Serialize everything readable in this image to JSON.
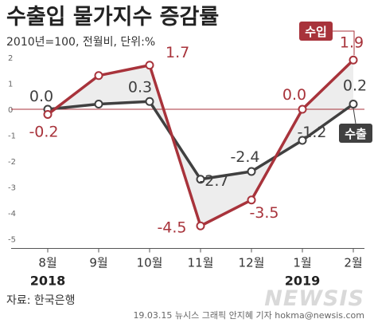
{
  "chart_data": {
    "type": "line",
    "title": "수출입 물가지수 증감률",
    "subtitle": "2010년=100, 전월비, 단위:%",
    "categories": [
      "8월",
      "9월",
      "10월",
      "11월",
      "12월",
      "1월",
      "2월"
    ],
    "year_labels": [
      "2018",
      "2019"
    ],
    "ylim": [
      -5,
      2
    ],
    "yticks": [
      "2",
      "1",
      "0",
      "-1",
      "-2",
      "-3",
      "-4",
      "-5"
    ],
    "grid": false,
    "series": [
      {
        "name": "수입",
        "values": [
          -0.2,
          1.3,
          1.7,
          -4.5,
          -3.5,
          0.0,
          1.9
        ],
        "labels": [
          "-0.2",
          "",
          "1.7",
          "-4.5",
          "-3.5",
          "0.0",
          "1.9"
        ],
        "color": "#a8333b"
      },
      {
        "name": "수출",
        "values": [
          0.0,
          0.2,
          0.3,
          -2.7,
          -2.4,
          -1.2,
          0.2
        ],
        "labels": [
          "0.0",
          "",
          "0.3",
          "-2.7",
          "-2.4",
          "-1.2",
          "0.2"
        ],
        "color": "#404040"
      }
    ],
    "zero_line_color": "#a8333b",
    "fill_color": "#ededed"
  },
  "source": "자료: 한국은행",
  "credit": "19.03.15  뉴시스 그래픽 안지혜 기자  hokma@newsis.com",
  "logo": "NEWSIS"
}
